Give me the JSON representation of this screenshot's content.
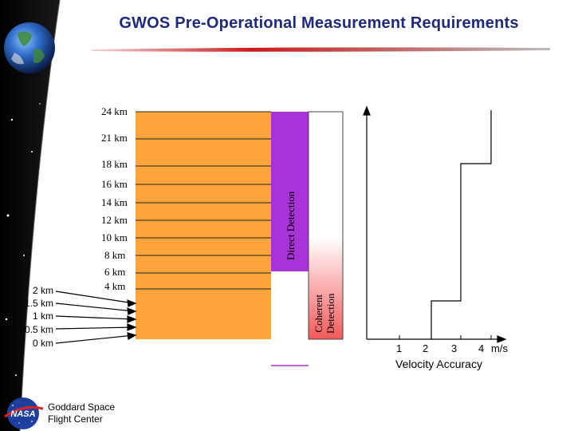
{
  "title": "GWOS Pre-Operational Measurement Requirements",
  "altitude_labels": [
    "24 km",
    "21 km",
    "18 km",
    "16 km",
    "14 km",
    "12 km",
    "10 km",
    "8 km",
    "6 km",
    "4 km"
  ],
  "low_altitude_labels": [
    "2 km",
    "1.5 km",
    "1 km",
    "0.5 km",
    "0 km"
  ],
  "direct_detection_label": "Direct Detection",
  "coherent_detection_label_line1": "Coherent",
  "coherent_detection_label_line2": "Detection",
  "velocity_ticks": [
    "1",
    "2",
    "3",
    "4"
  ],
  "velocity_unit": "m/s",
  "velocity_axis_label": "Velocity Accuracy",
  "footer_line1": "Goddard Space",
  "footer_line2": "Flight Center",
  "logo_text": "NASA",
  "colors": {
    "orange": "#ffa53a",
    "purple": "#a833d8",
    "coherent_red": "#f25a5a",
    "title": "#1f2a7a",
    "divider_red": "#cc1a1a"
  }
}
